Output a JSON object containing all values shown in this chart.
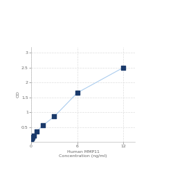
{
  "title": "",
  "xlabel_line1": "Human MMP11",
  "xlabel_line2": "Concentration (ng/ml)",
  "ylabel": "OD",
  "x_data": [
    0.023,
    0.047,
    0.094,
    0.188,
    0.375,
    0.75,
    1.5,
    3.0,
    6.0,
    12.0
  ],
  "y_data": [
    0.1,
    0.105,
    0.12,
    0.16,
    0.22,
    0.35,
    0.55,
    0.85,
    1.65,
    2.5
  ],
  "xlim": [
    0,
    13.5
  ],
  "ylim": [
    0,
    3.2
  ],
  "xticks": [
    0,
    6,
    12
  ],
  "xtick_labels": [
    "0",
    "6",
    "12"
  ],
  "yticks": [
    0.5,
    1.0,
    1.5,
    2.0,
    2.5,
    3.0
  ],
  "ytick_labels": [
    "0.5",
    "1",
    "1.5",
    "2",
    "2.5",
    "3"
  ],
  "line_color": "#aaccee",
  "marker_color": "#1a3a6b",
  "marker_size": 5,
  "grid_color": "#dddddd",
  "bg_color": "#ffffff",
  "spine_color": "#bbbbbb",
  "label_fontsize": 4.5,
  "tick_fontsize": 4.5
}
